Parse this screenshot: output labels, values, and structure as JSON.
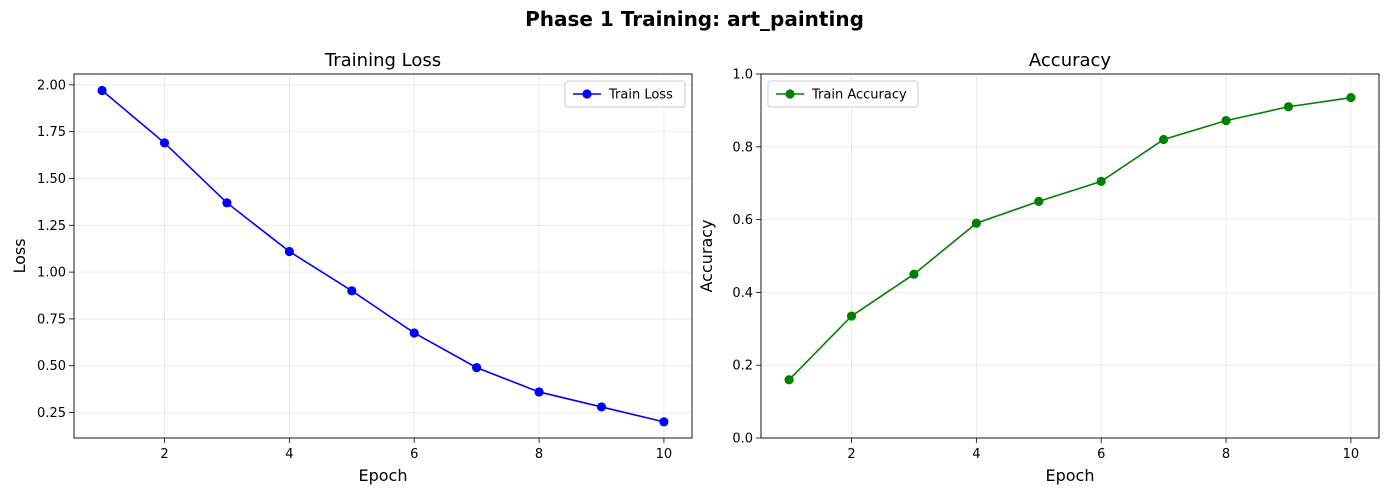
{
  "figure_title": "Phase 1 Training: art_painting",
  "chart_data": [
    {
      "type": "line",
      "title": "Training Loss",
      "xlabel": "Epoch",
      "ylabel": "Loss",
      "x": [
        1,
        2,
        3,
        4,
        5,
        6,
        7,
        8,
        9,
        10
      ],
      "xlim": [
        0.55,
        10.45
      ],
      "ylim": [
        0.114,
        2.058
      ],
      "xticks": [
        2,
        4,
        6,
        8,
        10
      ],
      "yticks": [
        0.25,
        0.5,
        0.75,
        1.0,
        1.25,
        1.5,
        1.75,
        2.0
      ],
      "ytick_decimals": 2,
      "grid": true,
      "legend_position": "upper right",
      "series": [
        {
          "name": "Train Loss",
          "color": "#0000ff",
          "values": [
            1.97,
            1.69,
            1.37,
            1.11,
            0.9,
            0.675,
            0.49,
            0.36,
            0.28,
            0.2
          ]
        }
      ]
    },
    {
      "type": "line",
      "title": "Accuracy",
      "xlabel": "Epoch",
      "ylabel": "Accuracy",
      "x": [
        1,
        2,
        3,
        4,
        5,
        6,
        7,
        8,
        9,
        10
      ],
      "xlim": [
        0.55,
        10.45
      ],
      "ylim": [
        0.0,
        1.0
      ],
      "xticks": [
        2,
        4,
        6,
        8,
        10
      ],
      "yticks": [
        0.0,
        0.2,
        0.4,
        0.6,
        0.8,
        1.0
      ],
      "ytick_decimals": 1,
      "grid": true,
      "legend_position": "upper left",
      "series": [
        {
          "name": "Train Accuracy",
          "color": "#008000",
          "values": [
            0.16,
            0.335,
            0.45,
            0.59,
            0.65,
            0.705,
            0.82,
            0.872,
            0.91,
            0.935
          ]
        }
      ]
    }
  ]
}
